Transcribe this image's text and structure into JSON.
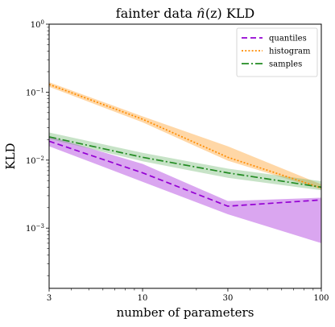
{
  "chart_data": {
    "type": "line",
    "title": "fainter data n̂(z) KLD",
    "title_parts": {
      "pre": "fainter data ",
      "n": "n",
      "hat": "^",
      "post": "(z) KLD"
    },
    "xlabel": "number of parameters",
    "ylabel": "KLD",
    "x_scale": "log",
    "y_scale": "log",
    "xlim": [
      3,
      100
    ],
    "ylim": [
      0.00013,
      1
    ],
    "x_ticks": [
      3,
      10,
      30,
      100
    ],
    "x_tick_labels": [
      "3",
      "10",
      "30",
      "100"
    ],
    "y_ticks": [
      0.001,
      0.01,
      0.1,
      1
    ],
    "y_tick_labels": [
      {
        "base": "10",
        "exp": "−3"
      },
      {
        "base": "10",
        "exp": "−2"
      },
      {
        "base": "10",
        "exp": "−1"
      },
      {
        "base": "10",
        "exp": "0"
      }
    ],
    "grid": false,
    "legend_position": "top-right",
    "x": [
      3,
      10,
      30,
      100
    ],
    "series": [
      {
        "name": "quantiles",
        "color": "#9400d3",
        "linestyle": "dashed",
        "values": [
          0.019,
          0.0065,
          0.0021,
          0.0026
        ],
        "band_lower": [
          0.016,
          0.0048,
          0.0016,
          0.0006
        ],
        "band_upper": [
          0.0225,
          0.0088,
          0.0025,
          0.0028
        ]
      },
      {
        "name": "histogram",
        "color": "#ff8c00",
        "linestyle": "dotted",
        "values": [
          0.13,
          0.04,
          0.011,
          0.0039
        ],
        "band_lower": [
          0.12,
          0.036,
          0.0098,
          0.0037
        ],
        "band_upper": [
          0.14,
          0.044,
          0.016,
          0.0044
        ]
      },
      {
        "name": "samples",
        "color": "#228b22",
        "band_color": "#5fae5f",
        "linestyle": "dashdot",
        "values": [
          0.022,
          0.011,
          0.0065,
          0.004
        ],
        "band_lower": [
          0.0205,
          0.0096,
          0.0055,
          0.0036
        ],
        "band_upper": [
          0.0255,
          0.0128,
          0.0075,
          0.0049
        ]
      }
    ]
  }
}
